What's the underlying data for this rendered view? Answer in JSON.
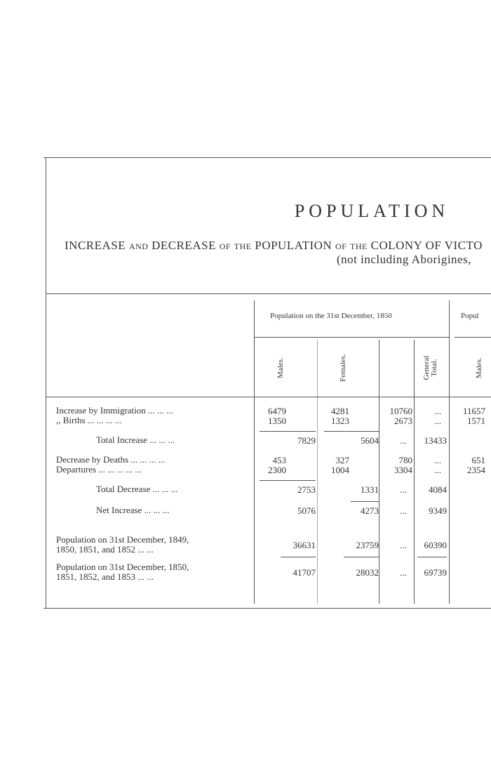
{
  "title": "POPULATION",
  "subtitle": [
    "INCREASE and DECREASE of the POPULATION of the COLONY OF VICTO",
    "(not including Aborigines,"
  ],
  "table": {
    "group_headers": [
      "Population on the 31st December, 1850",
      "Popul"
    ],
    "column_headers": [
      "Males.",
      "Females.",
      "General Total.",
      "Males."
    ],
    "rows": [
      {
        "label": "Increase by Immigration   ...      ...      ...",
        "cells": [
          6479,
          null,
          4281,
          null,
          10760,
          "...",
          11657
        ]
      },
      {
        "label": ",,          Births  ...      ...      ...      ...",
        "cells": [
          1350,
          null,
          1323,
          null,
          2673,
          "...",
          1571
        ]
      },
      {
        "label": "Total Increase     ...      ...      ...",
        "cells": [
          null,
          7829,
          null,
          5604,
          "...",
          13433,
          null
        ]
      },
      {
        "label": "Decrease by Deaths ...      ...      ...      ...",
        "cells": [
          453,
          null,
          327,
          null,
          780,
          "...",
          651
        ]
      },
      {
        "label": "Departures   ...      ...      ...      ...      ...",
        "cells": [
          2300,
          null,
          1004,
          null,
          3304,
          "...",
          2354
        ]
      },
      {
        "label": "Total Decrease     ...      ...      ...",
        "cells": [
          null,
          2753,
          null,
          1331,
          "...",
          4084,
          null
        ]
      },
      {
        "label": "Net Increase       ...      ...      ...",
        "cells": [
          null,
          5076,
          null,
          4273,
          "...",
          9349,
          null
        ]
      },
      {
        "label": "Population on 31st December, 1849,\n1850, 1851, and 1852     ...      ...",
        "cells": [
          null,
          36631,
          null,
          23759,
          "...",
          60390,
          null
        ]
      },
      {
        "label": "Population on 31st December, 1850,\n1851, 1852, and 1853     ...      ...",
        "cells": [
          null,
          41707,
          null,
          28032,
          "...",
          69739,
          null
        ]
      }
    ]
  }
}
